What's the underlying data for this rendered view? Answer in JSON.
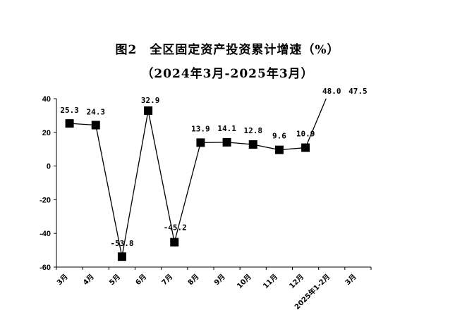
{
  "chart_data": {
    "type": "line",
    "title": "图2　全区固定资产投资累计增速（%）",
    "subtitle": "（2024年3月-2025年3月）",
    "categories": [
      "3月",
      "4月",
      "5月",
      "6月",
      "7月",
      "8月",
      "9月",
      "10月",
      "11月",
      "12月",
      "2025年1-2月",
      "3月"
    ],
    "series": [
      {
        "values": [
          25.3,
          24.3,
          -53.8,
          32.9,
          -45.2,
          13.9,
          14.1,
          12.8,
          9.6,
          10.9,
          48.0,
          47.5
        ]
      }
    ],
    "data_labels": [
      "25.3",
      "24.3",
      "-53.8",
      "32.9",
      "-45.2",
      "13.9",
      "14.1",
      "12.8",
      "9.6",
      "10.9",
      "48.0",
      "47.5"
    ],
    "ylim": [
      -60,
      40
    ],
    "yticks": [
      40,
      20,
      0,
      -20,
      -40,
      -60
    ],
    "grid": false,
    "marker": "square",
    "line_color": "#000000"
  }
}
